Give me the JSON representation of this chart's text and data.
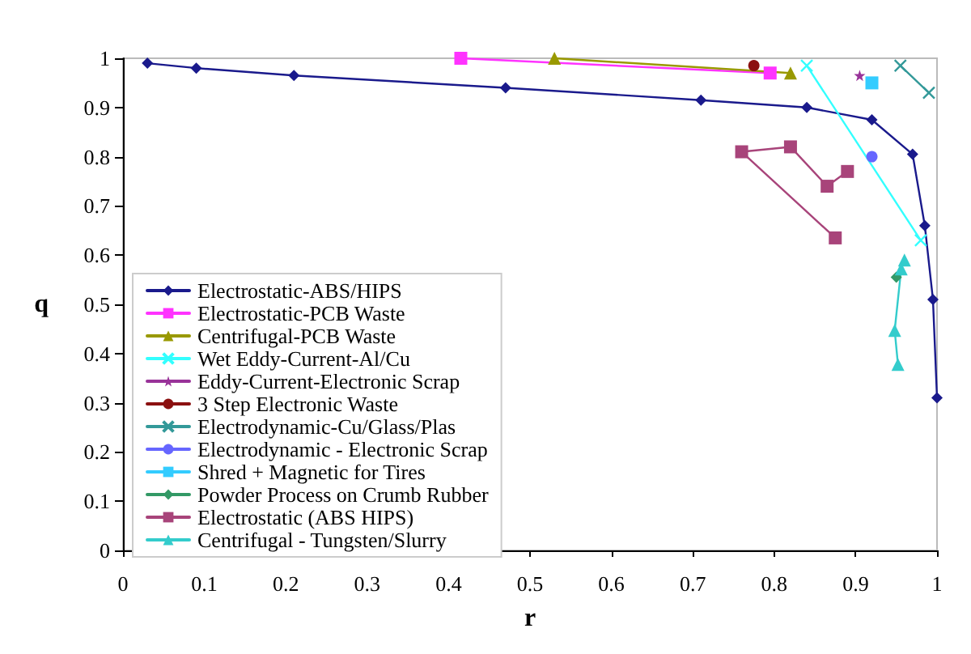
{
  "chart_data": {
    "type": "line",
    "xlabel": "r",
    "ylabel": "q",
    "xlim": [
      0,
      1
    ],
    "ylim": [
      0,
      1
    ],
    "xticks": [
      0,
      0.1,
      0.2,
      0.3,
      0.4,
      0.5,
      0.6,
      0.7,
      0.8,
      0.9,
      1
    ],
    "yticks": [
      0,
      0.1,
      0.2,
      0.3,
      0.4,
      0.5,
      0.6,
      0.7,
      0.8,
      0.9,
      1
    ],
    "legend": "bottom left",
    "line_style": "solid",
    "series": [
      {
        "name": "Electrostatic-ABS/HIPS",
        "color": "#1a1a8c",
        "marker": "diamond",
        "x": [
          0.03,
          0.09,
          0.21,
          0.47,
          0.71,
          0.84,
          0.92,
          0.97,
          0.985,
          0.995,
          1.0
        ],
        "values": [
          0.99,
          0.98,
          0.965,
          0.94,
          0.915,
          0.9,
          0.875,
          0.805,
          0.66,
          0.51,
          0.31
        ]
      },
      {
        "name": "Electrostatic-PCB Waste",
        "color": "#ff33ff",
        "marker": "square",
        "x": [
          0.415,
          0.795
        ],
        "values": [
          1.0,
          0.97
        ]
      },
      {
        "name": "Centrifugal-PCB Waste",
        "color": "#999900",
        "marker": "triangle",
        "x": [
          0.53,
          0.82
        ],
        "values": [
          1.0,
          0.97
        ]
      },
      {
        "name": "Wet Eddy-Current-Al/Cu",
        "color": "#33ffff",
        "marker": "cross",
        "x": [
          0.84,
          0.98
        ],
        "values": [
          0.985,
          0.63
        ]
      },
      {
        "name": "Eddy-Current-Electronic Scrap",
        "color": "#993399",
        "marker": "star",
        "x": [
          0.905
        ],
        "values": [
          0.965
        ]
      },
      {
        "name": "3 Step Electronic Waste",
        "color": "#8b1010",
        "marker": "circle",
        "x": [
          0.775
        ],
        "values": [
          0.985
        ]
      },
      {
        "name": "Electrodynamic-Cu/Glass/Plas",
        "color": "#339999",
        "marker": "cross",
        "x": [
          0.955,
          0.99
        ],
        "values": [
          0.985,
          0.93
        ]
      },
      {
        "name": "Electrodynamic - Electronic Scrap",
        "color": "#6666ff",
        "marker": "circle",
        "x": [
          0.92
        ],
        "values": [
          0.8
        ]
      },
      {
        "name": "Shred + Magnetic for Tires",
        "color": "#33ccff",
        "marker": "square",
        "x": [
          0.92
        ],
        "values": [
          0.95
        ]
      },
      {
        "name": "Powder Process on Crumb Rubber",
        "color": "#339966",
        "marker": "diamond",
        "x": [
          0.95
        ],
        "values": [
          0.555
        ]
      },
      {
        "name": "Electrostatic (ABS HIPS)",
        "color": "#a8447a",
        "marker": "square",
        "x": [
          0.875,
          0.76,
          0.82,
          0.865,
          0.89
        ],
        "values": [
          0.635,
          0.81,
          0.82,
          0.74,
          0.77
        ]
      },
      {
        "name": "Centrifugal - Tungsten/Slurry",
        "color": "#33cccc",
        "marker": "triangle",
        "x": [
          0.96,
          0.956,
          0.948,
          0.952
        ],
        "values": [
          0.59,
          0.572,
          0.447,
          0.378
        ]
      }
    ]
  }
}
